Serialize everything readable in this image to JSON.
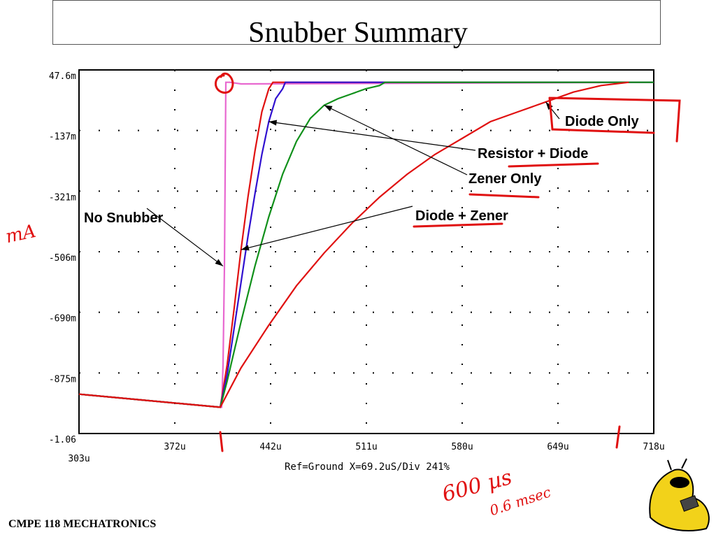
{
  "slide": {
    "title": "Snubber Summary",
    "footer": "CMPE 118 MECHATRONICS"
  },
  "chart_data": {
    "type": "line",
    "title": "Snubber Summary",
    "xlabel": "Ref=Ground  X=69.2uS/Div 241%",
    "ylabel": "",
    "x_ticks": [
      "303u",
      "372u",
      "442u",
      "511u",
      "580u",
      "649u",
      "718u"
    ],
    "y_ticks": [
      "47.6m",
      "-137m",
      "-321m",
      "-506m",
      "-690m",
      "-875m",
      "-1.06"
    ],
    "xlim": [
      303,
      718
    ],
    "ylim": [
      -1.06,
      0.0476
    ],
    "x_unit": "us",
    "y_unit": "A",
    "grid": true,
    "series": [
      {
        "name": "No Snubber",
        "color": "#e868d0",
        "x": [
          303,
          405,
          406,
          407,
          408,
          409,
          412,
          420,
          718
        ],
        "y": [
          -0.94,
          -0.98,
          -0.98,
          -0.85,
          -0.55,
          0.01,
          0.01,
          0.005,
          0.01
        ]
      },
      {
        "name": "Diode + Zener",
        "color": "#e01010",
        "x": [
          303,
          405,
          410,
          415,
          420,
          425,
          430,
          435,
          440,
          443,
          718
        ],
        "y": [
          -0.94,
          -0.98,
          -0.85,
          -0.68,
          -0.5,
          -0.34,
          -0.2,
          -0.08,
          -0.01,
          0.01,
          0.01
        ]
      },
      {
        "name": "Resistor + Diode",
        "color": "#3010d0",
        "x": [
          303,
          405,
          410,
          415,
          420,
          425,
          430,
          435,
          440,
          445,
          450,
          452,
          718
        ],
        "y": [
          -0.94,
          -0.98,
          -0.88,
          -0.74,
          -0.6,
          -0.46,
          -0.33,
          -0.21,
          -0.11,
          -0.04,
          -0.01,
          0.01,
          0.01
        ]
      },
      {
        "name": "Zener Only",
        "color": "#10901a",
        "x": [
          303,
          405,
          410,
          420,
          430,
          440,
          450,
          460,
          470,
          480,
          490,
          500,
          510,
          520,
          524,
          718
        ],
        "y": [
          -0.94,
          -0.98,
          -0.9,
          -0.72,
          -0.55,
          -0.4,
          -0.27,
          -0.17,
          -0.1,
          -0.06,
          -0.04,
          -0.025,
          -0.01,
          0.0,
          0.01,
          0.01
        ]
      },
      {
        "name": "Diode Only",
        "color": "#e01010",
        "x": [
          303,
          405,
          420,
          440,
          460,
          480,
          500,
          520,
          540,
          560,
          580,
          600,
          620,
          640,
          660,
          680,
          700
        ],
        "y": [
          -0.94,
          -0.98,
          -0.86,
          -0.73,
          -0.61,
          -0.51,
          -0.42,
          -0.34,
          -0.27,
          -0.21,
          -0.16,
          -0.11,
          -0.08,
          -0.05,
          -0.02,
          0.0,
          0.01
        ]
      }
    ],
    "annotations": [
      {
        "label": "No Snubber",
        "series": "No Snubber"
      },
      {
        "label": "Diode + Zener",
        "series": "Diode + Zener"
      },
      {
        "label": "Resistor + Diode",
        "series": "Resistor + Diode"
      },
      {
        "label": "Zener Only",
        "series": "Zener Only"
      },
      {
        "label": "Diode Only",
        "series": "Diode Only"
      }
    ],
    "handwritten_notes": [
      "mA",
      "600 µs",
      "0.6 msec"
    ]
  }
}
